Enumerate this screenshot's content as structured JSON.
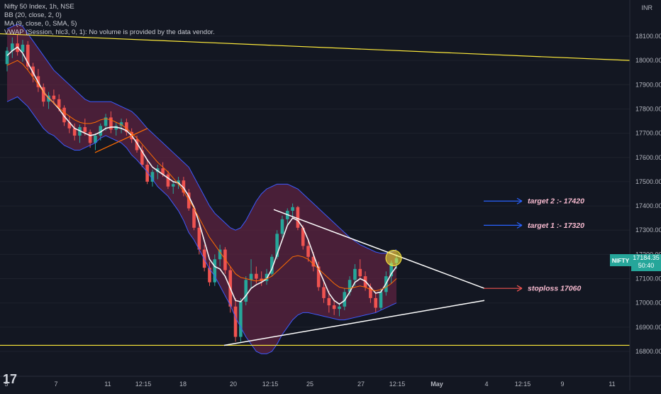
{
  "legend": {
    "line1": "Nifty 50 Index, 1h, NSE",
    "line2": "BB (20, close, 2, 0)",
    "line3": "MA (9, close, 0, SMA, 5)",
    "line4": "VWAP (Session, hlc3, 0, 1): No volume is provided by the data vendor."
  },
  "currency": "INR",
  "last_price": {
    "ticker": "NIFTY",
    "price": "17184.35",
    "countdown": "50:40"
  },
  "logo_text": "17",
  "colors": {
    "background": "#131722",
    "up": "#26a69a",
    "down": "#ef5350",
    "bb_fill": "#5c2340",
    "bb_band": "#3d5afe",
    "ma": "#f5f5f5",
    "bb_basis": "#ff6d00",
    "yellow": "#ffeb3b",
    "annotation_text": "#f8bbd0"
  },
  "chart_data": {
    "type": "candlestick",
    "y_axis": {
      "ticks": [
        18100,
        18000,
        17900,
        17800,
        17700,
        17600,
        17500,
        17400,
        17300,
        17200,
        17100,
        17000,
        16900,
        16800
      ],
      "tick_labels": [
        "18100.00",
        "18000.00",
        "17900.00",
        "17800.00",
        "17700.00",
        "17600.00",
        "17500.00",
        "17400.00",
        "17300.00",
        "17200.00",
        "17100.00",
        "17000.00",
        "16900.00",
        "16800.00"
      ],
      "range": [
        16750,
        18160
      ]
    },
    "x_axis": {
      "labels": [
        "5",
        "7",
        "11",
        "12:15",
        "18",
        "20",
        "12:15",
        "25",
        "27",
        "12:15",
        "May",
        "4",
        "12:15",
        "9",
        "11"
      ],
      "range": [
        0,
        88
      ]
    },
    "candles": [
      [
        17985,
        18055,
        17955,
        18040
      ],
      [
        18040,
        18095,
        18010,
        18070
      ],
      [
        18070,
        18110,
        18020,
        18035
      ],
      [
        18035,
        18085,
        17995,
        18065
      ],
      [
        18065,
        18080,
        17960,
        17975
      ],
      [
        17975,
        17990,
        17910,
        17935
      ],
      [
        17935,
        17965,
        17870,
        17890
      ],
      [
        17890,
        17905,
        17810,
        17830
      ],
      [
        17830,
        17870,
        17800,
        17855
      ],
      [
        17855,
        17880,
        17820,
        17840
      ],
      [
        17840,
        17860,
        17790,
        17805
      ],
      [
        17805,
        17815,
        17730,
        17745
      ],
      [
        17745,
        17770,
        17700,
        17720
      ],
      [
        17720,
        17740,
        17670,
        17690
      ],
      [
        17690,
        17735,
        17660,
        17725
      ],
      [
        17725,
        17760,
        17690,
        17705
      ],
      [
        17705,
        17715,
        17640,
        17660
      ],
      [
        17660,
        17700,
        17630,
        17690
      ],
      [
        17690,
        17740,
        17670,
        17730
      ],
      [
        17730,
        17780,
        17710,
        17765
      ],
      [
        17765,
        17790,
        17700,
        17715
      ],
      [
        17715,
        17745,
        17690,
        17730
      ],
      [
        17730,
        17760,
        17700,
        17745
      ],
      [
        17745,
        17760,
        17690,
        17705
      ],
      [
        17705,
        17720,
        17660,
        17675
      ],
      [
        17675,
        17690,
        17620,
        17630
      ],
      [
        17630,
        17650,
        17560,
        17570
      ],
      [
        17570,
        17590,
        17490,
        17500
      ],
      [
        17500,
        17550,
        17480,
        17540
      ],
      [
        17540,
        17570,
        17510,
        17555
      ],
      [
        17555,
        17580,
        17520,
        17530
      ],
      [
        17530,
        17545,
        17470,
        17480
      ],
      [
        17480,
        17500,
        17450,
        17490
      ],
      [
        17490,
        17520,
        17470,
        17505
      ],
      [
        17505,
        17520,
        17440,
        17455
      ],
      [
        17455,
        17470,
        17380,
        17390
      ],
      [
        17390,
        17400,
        17300,
        17310
      ],
      [
        17310,
        17330,
        17200,
        17220
      ],
      [
        17220,
        17240,
        17130,
        17145
      ],
      [
        17145,
        17170,
        17070,
        17085
      ],
      [
        17085,
        17200,
        17070,
        17180
      ],
      [
        17180,
        17240,
        17150,
        17220
      ],
      [
        17220,
        17230,
        17120,
        17135
      ],
      [
        17135,
        17150,
        16960,
        16985
      ],
      [
        16985,
        17020,
        16840,
        16860
      ],
      [
        16860,
        17020,
        16840,
        17005
      ],
      [
        17005,
        17110,
        16990,
        17095
      ],
      [
        17095,
        17180,
        17060,
        17120
      ],
      [
        17120,
        17150,
        17080,
        17100
      ],
      [
        17100,
        17130,
        17070,
        17090
      ],
      [
        17090,
        17140,
        17075,
        17120
      ],
      [
        17120,
        17200,
        17110,
        17190
      ],
      [
        17190,
        17300,
        17180,
        17285
      ],
      [
        17285,
        17360,
        17270,
        17345
      ],
      [
        17345,
        17390,
        17320,
        17380
      ],
      [
        17380,
        17410,
        17355,
        17395
      ],
      [
        17395,
        17400,
        17300,
        17310
      ],
      [
        17310,
        17320,
        17220,
        17235
      ],
      [
        17235,
        17260,
        17170,
        17190
      ],
      [
        17190,
        17210,
        17130,
        17150
      ],
      [
        17150,
        17170,
        17050,
        17065
      ],
      [
        17065,
        17090,
        17000,
        17020
      ],
      [
        17020,
        17050,
        16960,
        16990
      ],
      [
        16990,
        17010,
        16950,
        16975
      ],
      [
        16975,
        17000,
        16945,
        16985
      ],
      [
        16985,
        17060,
        16970,
        17045
      ],
      [
        17045,
        17110,
        17030,
        17095
      ],
      [
        17095,
        17160,
        17070,
        17140
      ],
      [
        17140,
        17180,
        17100,
        17110
      ],
      [
        17110,
        17130,
        17050,
        17065
      ],
      [
        17065,
        17080,
        17000,
        17020
      ],
      [
        17020,
        17040,
        16960,
        16980
      ],
      [
        16980,
        17060,
        16970,
        17045
      ],
      [
        17045,
        17130,
        17030,
        17110
      ],
      [
        17110,
        17175,
        17080,
        17165
      ],
      [
        17165,
        17200,
        17140,
        17184.35
      ]
    ],
    "series": [
      {
        "name": "MA (9, close, 0, SMA, 5)",
        "color": "#f5f5f5",
        "type": "line",
        "y": [
          18020,
          18040,
          18055,
          18030,
          17990,
          17950,
          17910,
          17870,
          17845,
          17825,
          17800,
          17770,
          17745,
          17720,
          17710,
          17700,
          17690,
          17695,
          17705,
          17720,
          17725,
          17725,
          17720,
          17710,
          17690,
          17660,
          17625,
          17590,
          17560,
          17545,
          17530,
          17515,
          17500,
          17495,
          17475,
          17440,
          17395,
          17330,
          17255,
          17180,
          17150,
          17140,
          17110,
          17060,
          17010,
          17005,
          17030,
          17060,
          17075,
          17085,
          17100,
          17140,
          17200,
          17260,
          17320,
          17350,
          17340,
          17310,
          17260,
          17200,
          17140,
          17090,
          17040,
          17010,
          16995,
          17010,
          17045,
          17085,
          17100,
          17090,
          17065,
          17040,
          17045,
          17080,
          17120,
          17150
        ]
      },
      {
        "name": "BB basis",
        "color": "#ff6d00",
        "type": "line",
        "y": [
          17980,
          17990,
          18000,
          17985,
          17960,
          17930,
          17900,
          17870,
          17845,
          17825,
          17805,
          17785,
          17770,
          17755,
          17745,
          17740,
          17740,
          17745,
          17755,
          17760,
          17755,
          17745,
          17735,
          17720,
          17700,
          17680,
          17655,
          17630,
          17605,
          17580,
          17560,
          17540,
          17515,
          17490,
          17460,
          17425,
          17390,
          17350,
          17310,
          17270,
          17240,
          17210,
          17180,
          17150,
          17120,
          17105,
          17100,
          17095,
          17090,
          17095,
          17100,
          17110,
          17130,
          17150,
          17170,
          17190,
          17195,
          17190,
          17180,
          17160,
          17140,
          17120,
          17100,
          17080,
          17065,
          17060,
          17060,
          17065,
          17070,
          17065,
          17055,
          17050,
          17055,
          17065,
          17080,
          17100
        ]
      },
      {
        "name": "BB upper",
        "color": "#3d5afe",
        "type": "band_upper",
        "y": [
          18130,
          18140,
          18150,
          18140,
          18110,
          18080,
          18050,
          18020,
          17990,
          17960,
          17940,
          17920,
          17900,
          17880,
          17860,
          17840,
          17830,
          17830,
          17830,
          17830,
          17830,
          17820,
          17810,
          17800,
          17790,
          17770,
          17745,
          17720,
          17700,
          17680,
          17660,
          17640,
          17620,
          17600,
          17580,
          17560,
          17520,
          17480,
          17440,
          17400,
          17370,
          17350,
          17330,
          17310,
          17300,
          17310,
          17340,
          17380,
          17420,
          17450,
          17470,
          17480,
          17490,
          17490,
          17490,
          17480,
          17470,
          17450,
          17430,
          17410,
          17390,
          17370,
          17350,
          17330,
          17310,
          17290,
          17270,
          17255,
          17240,
          17230,
          17220,
          17210,
          17205,
          17205,
          17210,
          17220
        ]
      },
      {
        "name": "BB lower",
        "color": "#3d5afe",
        "type": "band_lower",
        "y": [
          17830,
          17840,
          17850,
          17830,
          17810,
          17780,
          17750,
          17720,
          17700,
          17690,
          17670,
          17650,
          17640,
          17630,
          17630,
          17640,
          17650,
          17660,
          17680,
          17690,
          17680,
          17670,
          17660,
          17640,
          17610,
          17590,
          17565,
          17540,
          17510,
          17480,
          17460,
          17440,
          17410,
          17380,
          17340,
          17290,
          17260,
          17220,
          17180,
          17140,
          17110,
          17070,
          17030,
          16990,
          16940,
          16900,
          16860,
          16830,
          16800,
          16790,
          16790,
          16800,
          16830,
          16870,
          16900,
          16930,
          16950,
          16960,
          16960,
          16955,
          16950,
          16945,
          16940,
          16935,
          16930,
          16930,
          16935,
          16940,
          16945,
          16950,
          16955,
          16960,
          16970,
          16980,
          16990,
          17000
        ]
      }
    ],
    "trendlines": [
      {
        "name": "long-resistance",
        "color": "#ffeb3b",
        "from": [
          0,
          18110
        ],
        "to": [
          88,
          18000
        ]
      },
      {
        "name": "support-horizontal",
        "color": "#ffeb3b",
        "from": [
          -1,
          16825
        ],
        "to": [
          88,
          16825
        ]
      },
      {
        "name": "triangle-upper",
        "color": "#ffffff",
        "from": [
          49,
          17385
        ],
        "to": [
          87,
          17060
        ]
      },
      {
        "name": "triangle-lower",
        "color": "#ffffff",
        "from": [
          40,
          16825
        ],
        "to": [
          87,
          17010
        ]
      },
      {
        "name": "mini-channel",
        "color": "#ff6d00",
        "from": [
          17,
          17620
        ],
        "to": [
          26,
          17720
        ]
      }
    ],
    "highlight": {
      "x": 70.5,
      "y": 17185
    },
    "annotations": [
      {
        "label": "target 2 :- 17420",
        "arrow_color": "#2962ff",
        "x_from": 87,
        "x_to": 94,
        "y": 17420
      },
      {
        "label": "target 1 :- 17320",
        "arrow_color": "#2962ff",
        "x_from": 87,
        "x_to": 94,
        "y": 17320
      },
      {
        "label": "stoploss 17060",
        "arrow_color": "#ef5350",
        "x_from": 87,
        "x_to": 94,
        "y": 17060
      }
    ]
  }
}
